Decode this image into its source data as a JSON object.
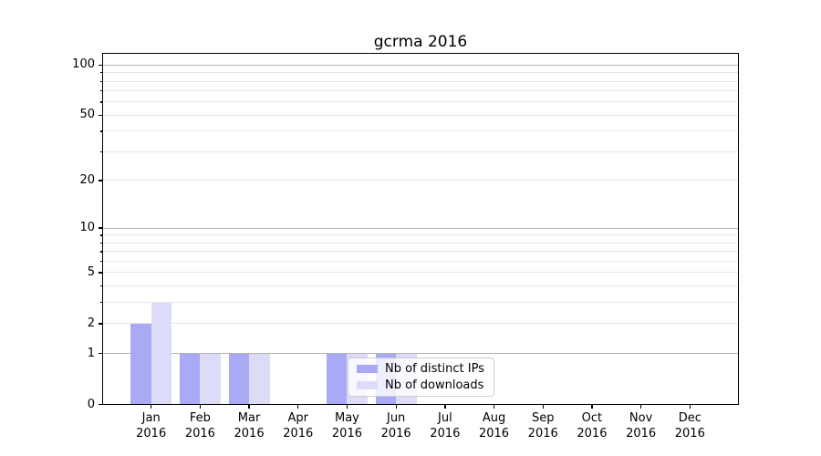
{
  "figure": {
    "background": "#ffffff",
    "title": "gcrma 2016"
  },
  "chart_data": {
    "type": "bar",
    "title": "gcrma 2016",
    "categories": [
      "Jan 2016",
      "Feb 2016",
      "Mar 2016",
      "Apr 2016",
      "May 2016",
      "Jun 2016",
      "Jul 2016",
      "Aug 2016",
      "Sep 2016",
      "Oct 2016",
      "Nov 2016",
      "Dec 2016"
    ],
    "series": [
      {
        "name": "Nb of distinct IPs",
        "color": "#a9a9f5",
        "values": [
          2,
          1,
          1,
          0,
          1,
          1,
          0,
          0,
          0,
          0,
          0,
          0
        ]
      },
      {
        "name": "Nb of downloads",
        "color": "#dcdcf9",
        "values": [
          3,
          1,
          1,
          0,
          1,
          1,
          0,
          0,
          0,
          0,
          0,
          0
        ]
      }
    ],
    "yscale": "log1p",
    "ylim": [
      0,
      100
    ],
    "y_ticks_labeled": [
      0,
      1,
      2,
      5,
      10,
      20,
      50,
      100
    ],
    "y_grid_major": [
      1,
      10,
      100
    ],
    "y_grid_minor": [
      2,
      3,
      4,
      5,
      6,
      7,
      8,
      9,
      20,
      30,
      40,
      50,
      60,
      70,
      80,
      90
    ],
    "grid": "horizontal",
    "legend_position": "lower-center-inside"
  },
  "legend": {
    "items": [
      {
        "label": "Nb of distinct IPs",
        "color": "#a9a9f5"
      },
      {
        "label": "Nb of downloads",
        "color": "#dcdcf9"
      }
    ]
  },
  "colors": {
    "bar_ips": "#a9a9f5",
    "bar_downloads": "#dcdcf9",
    "grid_major": "#b3b3b3",
    "grid_minor": "#e7e7e7",
    "axis": "#000000",
    "legend_border": "#cccccc",
    "legend_background": "rgba(255,255,255,0.8)"
  }
}
